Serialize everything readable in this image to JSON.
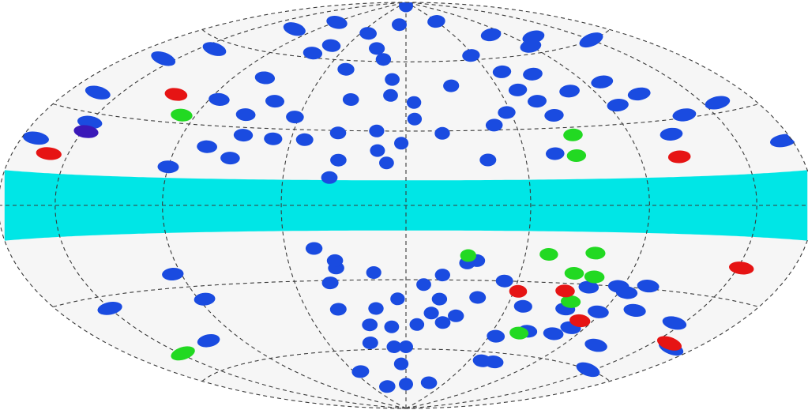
{
  "projection": "aitoff-hammer",
  "background_color": "#ffffff",
  "map_fill": "#f6f6f6",
  "grid_color": "#3a3a3a",
  "grid_style": "dashed",
  "band": {
    "color": "#00e6e6",
    "b_min": -10,
    "b_max": 10
  },
  "meridians_deg": [
    -150,
    -100,
    -50,
    0,
    50,
    100,
    150
  ],
  "parallels_deg": [
    -60,
    -30,
    0,
    30,
    60
  ],
  "sources": {
    "blue": {
      "color": "#1a4be0",
      "positions": [
        [
          -98,
          76
        ],
        [
          -120,
          70
        ],
        [
          -140,
          57
        ],
        [
          -158,
          50
        ],
        [
          -163,
          36
        ],
        [
          -150,
          27
        ],
        [
          -172,
          20
        ],
        [
          -95,
          40
        ],
        [
          -82,
          50
        ],
        [
          -66,
          41
        ],
        [
          -76,
          35
        ],
        [
          -52,
          35
        ],
        [
          -28,
          43
        ],
        [
          -13,
          30
        ],
        [
          -30,
          29
        ],
        [
          -28,
          18
        ],
        [
          -31,
          11
        ],
        [
          -8,
          17
        ],
        [
          -2,
          25
        ],
        [
          -12,
          22
        ],
        [
          -44,
          26
        ],
        [
          -58,
          26
        ],
        [
          -72,
          27
        ],
        [
          -86,
          22
        ],
        [
          -100,
          14
        ],
        [
          -74,
          18
        ],
        [
          -42,
          73
        ],
        [
          -24,
          66
        ],
        [
          -16,
          61
        ],
        [
          -38,
          56
        ],
        [
          -8,
          45
        ],
        [
          -63,
          66
        ],
        [
          -70,
          62
        ],
        [
          -8,
          52
        ],
        [
          4,
          42
        ],
        [
          4,
          35
        ],
        [
          16,
          29
        ],
        [
          25,
          49
        ],
        [
          40,
          32
        ],
        [
          48,
          37
        ],
        [
          48,
          62
        ],
        [
          59,
          54
        ],
        [
          60,
          46
        ],
        [
          66,
          41
        ],
        [
          70,
          35
        ],
        [
          63,
          20
        ],
        [
          34,
          18
        ],
        [
          76,
          52
        ],
        [
          87,
          44
        ],
        [
          110,
          46
        ],
        [
          122,
          40
        ],
        [
          105,
          37
        ],
        [
          120,
          25
        ],
        [
          134,
          31
        ],
        [
          158,
          33
        ],
        [
          175,
          19
        ],
        [
          150,
          60
        ],
        [
          116,
          66
        ],
        [
          0,
          88
        ],
        [
          -10,
          78
        ],
        [
          50,
          79
        ],
        [
          86,
          70
        ],
        [
          100,
          63
        ],
        [
          -38,
          -17
        ],
        [
          -30,
          -25
        ],
        [
          -34,
          -31
        ],
        [
          -30,
          -22
        ],
        [
          -14,
          -27
        ],
        [
          -4,
          -38
        ],
        [
          -15,
          -42
        ],
        [
          -8,
          -50
        ],
        [
          -20,
          -49
        ],
        [
          -34,
          -42
        ],
        [
          -23,
          -57
        ],
        [
          -8,
          -59
        ],
        [
          -4,
          -67
        ],
        [
          0,
          -77
        ],
        [
          0,
          -59
        ],
        [
          6,
          -49
        ],
        [
          13,
          -44
        ],
        [
          16,
          -38
        ],
        [
          8,
          -32
        ],
        [
          16,
          -28
        ],
        [
          26,
          -23
        ],
        [
          20,
          -48
        ],
        [
          26,
          -45
        ],
        [
          30,
          -22
        ],
        [
          34,
          -37
        ],
        [
          44,
          -30
        ],
        [
          54,
          -53
        ],
        [
          60,
          -64
        ],
        [
          58,
          -40
        ],
        [
          70,
          -50
        ],
        [
          80,
          -40
        ],
        [
          84,
          -31
        ],
        [
          92,
          -47
        ],
        [
          98,
          -30
        ],
        [
          104,
          -32
        ],
        [
          112,
          -29
        ],
        [
          116,
          -38
        ],
        [
          120,
          -52
        ],
        [
          145,
          -40
        ],
        [
          166,
          -47
        ],
        [
          146,
          -60
        ],
        [
          -97,
          -35
        ],
        [
          -104,
          -25
        ],
        [
          -120,
          -50
        ],
        [
          -150,
          -34
        ],
        [
          -44,
          -70
        ],
        [
          -28,
          -78
        ],
        [
          30,
          -76
        ],
        [
          70,
          -64
        ],
        [
          86,
          -50
        ],
        [
          98,
          -40
        ]
      ]
    },
    "red": {
      "color": "#e61414",
      "positions": [
        [
          -120,
          40
        ],
        [
          -160,
          16
        ],
        [
          118,
          17
        ],
        [
          74,
          -33
        ],
        [
          52,
          -34
        ],
        [
          93,
          -44
        ],
        [
          152,
          -20
        ],
        [
          160,
          -46
        ]
      ]
    },
    "green": {
      "color": "#22d922",
      "positions": [
        [
          -107,
          33
        ],
        [
          74,
          27
        ],
        [
          72,
          19
        ],
        [
          26,
          -20
        ],
        [
          60,
          -19
        ],
        [
          80,
          -18
        ],
        [
          74,
          -26
        ],
        [
          84,
          -27
        ],
        [
          80,
          -37
        ],
        [
          66,
          -51
        ],
        [
          -148,
          -52
        ]
      ]
    },
    "purple": {
      "color": "#3a18b8",
      "positions": [
        [
          -148,
          24
        ]
      ]
    }
  }
}
